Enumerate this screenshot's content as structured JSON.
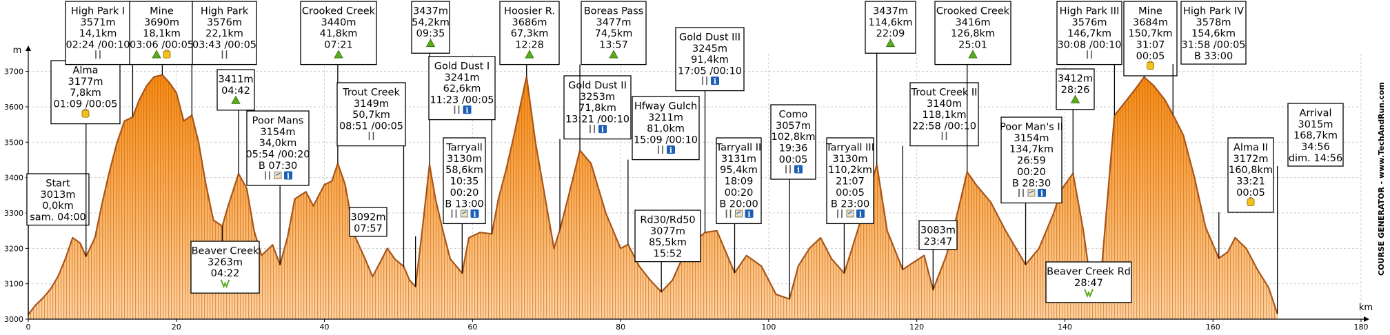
{
  "chart_data": {
    "type": "area",
    "xlabel": "km",
    "ylabel": "m",
    "xlim": [
      0,
      180
    ],
    "ylim": [
      3000,
      3750
    ],
    "x_ticks": [
      0,
      20,
      40,
      60,
      80,
      100,
      120,
      140,
      160,
      180
    ],
    "y_ticks": [
      3000,
      3100,
      3200,
      3300,
      3400,
      3500,
      3600,
      3700
    ],
    "grid": true,
    "profile": [
      [
        0,
        3013
      ],
      [
        1,
        3040
      ],
      [
        2,
        3060
      ],
      [
        3,
        3085
      ],
      [
        4,
        3120
      ],
      [
        5,
        3170
      ],
      [
        6,
        3230
      ],
      [
        7,
        3215
      ],
      [
        7.8,
        3177
      ],
      [
        9,
        3230
      ],
      [
        10,
        3330
      ],
      [
        11,
        3420
      ],
      [
        12,
        3500
      ],
      [
        13,
        3560
      ],
      [
        14.1,
        3571
      ],
      [
        15,
        3620
      ],
      [
        16,
        3660
      ],
      [
        17,
        3685
      ],
      [
        18.1,
        3690
      ],
      [
        19,
        3670
      ],
      [
        20,
        3640
      ],
      [
        21,
        3560
      ],
      [
        22.1,
        3576
      ],
      [
        23,
        3500
      ],
      [
        24,
        3380
      ],
      [
        25,
        3280
      ],
      [
        26.2,
        3263
      ],
      [
        27,
        3320
      ],
      [
        28.4,
        3411
      ],
      [
        29.5,
        3370
      ],
      [
        30.5,
        3250
      ],
      [
        31.5,
        3180
      ],
      [
        33,
        3210
      ],
      [
        34,
        3154
      ],
      [
        35,
        3230
      ],
      [
        36,
        3340
      ],
      [
        37.5,
        3360
      ],
      [
        38.5,
        3320
      ],
      [
        40,
        3380
      ],
      [
        41,
        3390
      ],
      [
        41.8,
        3440
      ],
      [
        42.8,
        3380
      ],
      [
        44,
        3240
      ],
      [
        45.5,
        3170
      ],
      [
        46.5,
        3120
      ],
      [
        47.5,
        3160
      ],
      [
        48.5,
        3200
      ],
      [
        49.5,
        3170
      ],
      [
        50.7,
        3149
      ],
      [
        51.5,
        3110
      ],
      [
        52.3,
        3092
      ],
      [
        53.2,
        3250
      ],
      [
        54.2,
        3437
      ],
      [
        55,
        3340
      ],
      [
        56,
        3250
      ],
      [
        57,
        3170
      ],
      [
        58.6,
        3130
      ],
      [
        59.5,
        3230
      ],
      [
        61,
        3245
      ],
      [
        62.6,
        3241
      ],
      [
        63.5,
        3340
      ],
      [
        64.5,
        3420
      ],
      [
        65.5,
        3510
      ],
      [
        67.3,
        3686
      ],
      [
        68.5,
        3500
      ],
      [
        70,
        3320
      ],
      [
        71,
        3200
      ],
      [
        71.8,
        3253
      ],
      [
        73,
        3350
      ],
      [
        74.5,
        3477
      ],
      [
        76,
        3440
      ],
      [
        78,
        3300
      ],
      [
        80,
        3200
      ],
      [
        81,
        3211
      ],
      [
        82.5,
        3150
      ],
      [
        84,
        3110
      ],
      [
        85.5,
        3077
      ],
      [
        87,
        3110
      ],
      [
        88.5,
        3180
      ],
      [
        90,
        3220
      ],
      [
        91.4,
        3245
      ],
      [
        93,
        3250
      ],
      [
        95.4,
        3131
      ],
      [
        97,
        3180
      ],
      [
        99,
        3150
      ],
      [
        101,
        3070
      ],
      [
        102.8,
        3057
      ],
      [
        104,
        3150
      ],
      [
        105.5,
        3200
      ],
      [
        107,
        3230
      ],
      [
        108.5,
        3170
      ],
      [
        110.2,
        3130
      ],
      [
        112,
        3250
      ],
      [
        114.6,
        3437
      ],
      [
        116,
        3250
      ],
      [
        118.1,
        3140
      ],
      [
        119.5,
        3160
      ],
      [
        121,
        3180
      ],
      [
        122.2,
        3083
      ],
      [
        124,
        3180
      ],
      [
        125.5,
        3300
      ],
      [
        126.8,
        3416
      ],
      [
        128,
        3380
      ],
      [
        130,
        3330
      ],
      [
        132,
        3250
      ],
      [
        134.7,
        3154
      ],
      [
        136.5,
        3200
      ],
      [
        138.5,
        3300
      ],
      [
        139.5,
        3365
      ],
      [
        141.1,
        3412
      ],
      [
        142.5,
        3250
      ],
      [
        143.5,
        3100
      ],
      [
        143.9,
        3082
      ],
      [
        145,
        3150
      ],
      [
        146.7,
        3576
      ],
      [
        148,
        3610
      ],
      [
        149.5,
        3650
      ],
      [
        150.7,
        3684
      ],
      [
        152,
        3660
      ],
      [
        153.5,
        3620
      ],
      [
        154.6,
        3578
      ],
      [
        156,
        3520
      ],
      [
        157.5,
        3400
      ],
      [
        159,
        3260
      ],
      [
        160.8,
        3172
      ],
      [
        162,
        3190
      ],
      [
        163,
        3230
      ],
      [
        164.5,
        3200
      ],
      [
        166,
        3140
      ],
      [
        167.5,
        3090
      ],
      [
        168.7,
        3015
      ]
    ],
    "waypoints": [
      {
        "name": "Start",
        "ele": 3013,
        "km": 0.0,
        "lines": [
          "Start",
          "3013m",
          "0,0km",
          "sam. 04:00"
        ],
        "icons": []
      },
      {
        "name": "Alma",
        "ele": 3177,
        "km": 7.8,
        "lines": [
          "Alma",
          "3177m",
          "7,8km",
          "01:09 /00:05"
        ],
        "icons": [
          "shop"
        ]
      },
      {
        "name": "High Park I",
        "ele": 3571,
        "km": 14.1,
        "lines": [
          "High Park I",
          "3571m",
          "14,1km",
          "02:24 /00:10"
        ],
        "icons": [
          "food"
        ]
      },
      {
        "name": "Mine",
        "ele": 3690,
        "km": 18.1,
        "lines": [
          "Mine",
          "3690m",
          "18,1km",
          "03:06 /00:05"
        ],
        "icons": [
          "summit",
          "shop"
        ]
      },
      {
        "name": "High Park",
        "ele": 3576,
        "km": 22.1,
        "lines": [
          "High Park",
          "3576m",
          "22,1km",
          "03:43 /00:05"
        ],
        "icons": [
          "food"
        ]
      },
      {
        "name": "Beaver Creek",
        "ele": 3263,
        "km": 26.2,
        "lines": [
          "Beaver Creek",
          "3263m",
          "04:22"
        ],
        "icons": [
          "valley"
        ]
      },
      {
        "name": "3411m",
        "ele": 3411,
        "km": 28.4,
        "lines": [
          "3411m",
          "04:42"
        ],
        "icons": [
          "summit"
        ]
      },
      {
        "name": "Poor Mans",
        "ele": 3154,
        "km": 34.0,
        "lines": [
          "Poor Mans",
          "3154m",
          "34,0km",
          "05:54 /00:20",
          "B 07:30"
        ],
        "icons": [
          "food",
          "bag",
          "info"
        ]
      },
      {
        "name": "Crooked Creek",
        "ele": 3440,
        "km": 41.8,
        "lines": [
          "Crooked Creek",
          "3440m",
          "41,8km",
          "07:21"
        ],
        "icons": [
          "summit"
        ]
      },
      {
        "name": "Trout Creek",
        "ele": 3149,
        "km": 50.7,
        "lines": [
          "Trout Creek",
          "3149m",
          "50,7km",
          "08:51 /00:05"
        ],
        "icons": [
          "food"
        ]
      },
      {
        "name": "3092m",
        "ele": 3092,
        "km": 52.3,
        "lines": [
          "3092m",
          "07:57"
        ],
        "icons": []
      },
      {
        "name": "3437m",
        "ele": 3437,
        "km": 54.2,
        "lines": [
          "3437m",
          "54,2km",
          "09:35"
        ],
        "icons": [
          "summit"
        ]
      },
      {
        "name": "Tarryall",
        "ele": 3130,
        "km": 58.6,
        "lines": [
          "Tarryall",
          "3130m",
          "58,6km",
          "10:35",
          "00:20",
          "B 13:00"
        ],
        "icons": [
          "food",
          "bag",
          "info"
        ]
      },
      {
        "name": "Gold Dust I",
        "ele": 3241,
        "km": 62.6,
        "lines": [
          "Gold Dust I",
          "3241m",
          "62,6km",
          "11:23 /00:05"
        ],
        "icons": [
          "food",
          "info"
        ]
      },
      {
        "name": "Hoosier R.",
        "ele": 3686,
        "km": 67.3,
        "lines": [
          "Hoosier R.",
          "3686m",
          "67,3km",
          "12:28"
        ],
        "icons": [
          "summit"
        ]
      },
      {
        "name": "Gold Dust II",
        "ele": 3253,
        "km": 71.8,
        "lines": [
          "Gold Dust II",
          "3253m",
          "71,8km",
          "13:21 /00:10"
        ],
        "icons": [
          "food",
          "info"
        ]
      },
      {
        "name": "Boreas Pass",
        "ele": 3477,
        "km": 74.5,
        "lines": [
          "Boreas Pass",
          "3477m",
          "74,5km",
          "13:57"
        ],
        "icons": [
          "summit"
        ]
      },
      {
        "name": "Hfway Gulch",
        "ele": 3211,
        "km": 81.0,
        "lines": [
          "Hfway Gulch",
          "3211m",
          "81,0km",
          "15:09 /00:10"
        ],
        "icons": [
          "food",
          "info"
        ]
      },
      {
        "name": "Rd30/Rd50",
        "ele": 3077,
        "km": 85.5,
        "lines": [
          "Rd30/Rd50",
          "3077m",
          "85,5km",
          "15:52"
        ],
        "icons": []
      },
      {
        "name": "Gold Dust III",
        "ele": 3245,
        "km": 91.4,
        "lines": [
          "Gold Dust III",
          "3245m",
          "91,4km",
          "17:05 /00:10"
        ],
        "icons": [
          "food",
          "info"
        ]
      },
      {
        "name": "Tarryall II",
        "ele": 3131,
        "km": 95.4,
        "lines": [
          "Tarryall II",
          "3131m",
          "95,4km",
          "18:09",
          "00:20",
          "B 20:00"
        ],
        "icons": [
          "food",
          "bag",
          "info"
        ]
      },
      {
        "name": "Como",
        "ele": 3057,
        "km": 102.8,
        "lines": [
          "Como",
          "3057m",
          "102,8km",
          "19:36",
          "00:05"
        ],
        "icons": [
          "food",
          "info"
        ]
      },
      {
        "name": "Tarryall III",
        "ele": 3130,
        "km": 110.2,
        "lines": [
          "Tarryall III",
          "3130m",
          "110,2km",
          "21:07",
          "00:05",
          "B 23:00"
        ],
        "icons": [
          "food",
          "bag",
          "info"
        ]
      },
      {
        "name": "3437m-2",
        "ele": 3437,
        "km": 114.6,
        "lines": [
          "3437m",
          "114,6km",
          "22:09"
        ],
        "icons": [
          "summit"
        ]
      },
      {
        "name": "Trout Creek II",
        "ele": 3140,
        "km": 118.1,
        "lines": [
          "Trout Creek II",
          "3140m",
          "118,1km",
          "22:58 /00:10"
        ],
        "icons": [
          "food"
        ]
      },
      {
        "name": "3083m",
        "ele": 3083,
        "km": 122.2,
        "lines": [
          "3083m",
          "23:47"
        ],
        "icons": []
      },
      {
        "name": "Crooked Creek-2",
        "ele": 3416,
        "km": 126.8,
        "lines": [
          "Crooked Creek",
          "3416m",
          "126,8km",
          "25:01"
        ],
        "icons": [
          "summit"
        ]
      },
      {
        "name": "Poor Man's II",
        "ele": 3154,
        "km": 134.7,
        "lines": [
          "Poor Man's II",
          "3154m",
          "134,7km",
          "26:59",
          "00:20",
          "B 28:30"
        ],
        "icons": [
          "food",
          "bag",
          "info"
        ]
      },
      {
        "name": "3412m",
        "ele": 3412,
        "km": 141.1,
        "lines": [
          "3412m",
          "28:26"
        ],
        "icons": [
          "summit"
        ]
      },
      {
        "name": "Beaver Creek Rd",
        "ele": 3082,
        "km": 143.9,
        "lines": [
          "Beaver Creek Rd",
          "28:47"
        ],
        "icons": [
          "valley"
        ]
      },
      {
        "name": "High Park III",
        "ele": 3576,
        "km": 146.7,
        "lines": [
          "High Park III",
          "3576m",
          "146,7km",
          "30:08 /00:10"
        ],
        "icons": [
          "food"
        ]
      },
      {
        "name": "Mine-2",
        "ele": 3684,
        "km": 150.7,
        "lines": [
          "Mine",
          "3684m",
          "150,7km",
          "31:07",
          "00:05"
        ],
        "icons": [
          "shop"
        ]
      },
      {
        "name": "High Park IV",
        "ele": 3578,
        "km": 154.6,
        "lines": [
          "High Park IV",
          "3578m",
          "154,6km",
          "31:58 /00:05",
          "B 33:00"
        ],
        "icons": []
      },
      {
        "name": "Alma II",
        "ele": 3172,
        "km": 160.8,
        "lines": [
          "Alma II",
          "3172m",
          "160,8km",
          "33:21",
          "00:05"
        ],
        "icons": [
          "shop"
        ]
      },
      {
        "name": "Arrival",
        "ele": 3015,
        "km": 168.7,
        "lines": [
          "Arrival",
          "3015m",
          "168,7km",
          "34:56",
          "dim. 14:56"
        ],
        "icons": []
      }
    ],
    "side_label": "COURSE GENERATOR - www.TechAndRun.com",
    "colors": {
      "fill_light": "#fcd9b0",
      "fill_dark": "#f7931e",
      "stroke": "#a85418",
      "stripe": "#e0700f",
      "grid": "#cccccc",
      "box_line": "#000000",
      "summit": "#5aaa1e",
      "shop": "#f2c21a",
      "info": "#1a5fb4"
    }
  }
}
